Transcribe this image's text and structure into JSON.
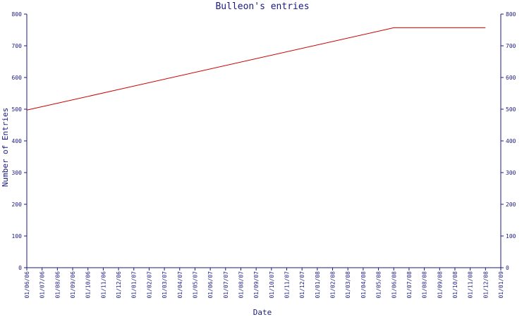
{
  "chart_data": {
    "type": "line",
    "title": "Bulleon's entries",
    "xlabel": "Date",
    "ylabel": "Number of Entries",
    "ylim": [
      0,
      800
    ],
    "yticks": [
      0,
      100,
      200,
      300,
      400,
      500,
      600,
      700,
      800
    ],
    "right_axis": true,
    "grid": false,
    "legend": "none",
    "categories": [
      "01/06/06",
      "01/07/06",
      "01/08/06",
      "01/09/06",
      "01/10/06",
      "01/11/06",
      "01/12/06",
      "01/01/07",
      "01/02/07",
      "01/03/07",
      "01/04/07",
      "01/05/07",
      "01/06/07",
      "01/07/07",
      "01/08/07",
      "01/09/07",
      "01/10/07",
      "01/11/07",
      "01/12/07",
      "01/01/08",
      "01/02/08",
      "01/03/08",
      "01/04/08",
      "01/05/08",
      "01/06/08",
      "01/07/08",
      "01/08/08",
      "01/09/08",
      "01/10/08",
      "01/11/08",
      "01/12/08",
      "01/01/09"
    ],
    "series": [
      {
        "color": "#cc0000",
        "points": [
          {
            "x": "01/06/06",
            "y": 497
          },
          {
            "x": "01/06/08",
            "y": 757
          },
          {
            "x": "01/12/08",
            "y": 757
          }
        ]
      }
    ]
  }
}
